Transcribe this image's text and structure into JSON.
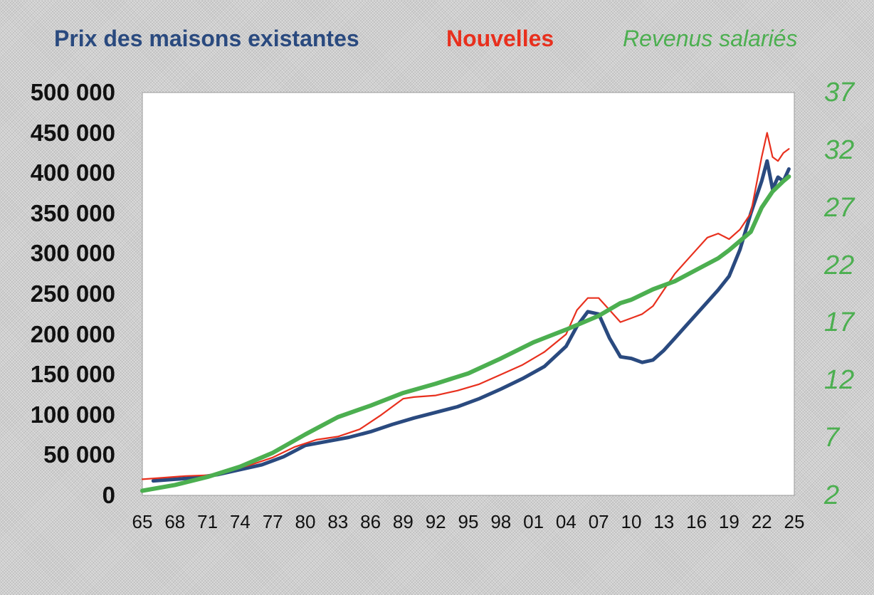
{
  "legend": {
    "existing": "Prix des maisons existantes",
    "new": "Nouvelles",
    "income": "Revenus salariés"
  },
  "colors": {
    "existing": "#2a4a7f",
    "new": "#e8301e",
    "income": "#4caf50",
    "plot_background": "#ffffff"
  },
  "chart_data": {
    "type": "line",
    "title": "",
    "xlabel": "",
    "ylabel_left": "",
    "ylabel_right": "",
    "x_ticks": [
      "65",
      "68",
      "71",
      "74",
      "77",
      "80",
      "83",
      "86",
      "89",
      "92",
      "95",
      "98",
      "01",
      "04",
      "07",
      "10",
      "13",
      "16",
      "19",
      "22",
      "25"
    ],
    "x_range": [
      1965,
      2025
    ],
    "y_left_ticks": [
      "0",
      "50 000",
      "100 000",
      "150 000",
      "200 000",
      "250 000",
      "300 000",
      "350 000",
      "400 000",
      "450 000",
      "500 000"
    ],
    "y_left_range": [
      0,
      500000
    ],
    "y_right_ticks": [
      "2",
      "7",
      "12",
      "17",
      "22",
      "27",
      "32",
      "37"
    ],
    "y_right_range": [
      2,
      37
    ],
    "grid": false,
    "legend_position": "top",
    "series": [
      {
        "name": "Prix des maisons existantes",
        "axis": "left",
        "x": [
          1966,
          1968,
          1970,
          1972,
          1974,
          1976,
          1978,
          1980,
          1982,
          1984,
          1986,
          1988,
          1990,
          1992,
          1994,
          1996,
          1998,
          2000,
          2002,
          2004,
          2005,
          2006,
          2007,
          2008,
          2009,
          2010,
          2011,
          2012,
          2013,
          2014,
          2015,
          2016,
          2017,
          2018,
          2019,
          2020,
          2021,
          2022,
          2022.5,
          2023,
          2023.5,
          2024,
          2024.5
        ],
        "y": [
          18000,
          20000,
          22000,
          26000,
          32000,
          38000,
          48000,
          62000,
          67000,
          72000,
          79000,
          88000,
          96000,
          103000,
          110000,
          120000,
          132000,
          145000,
          160000,
          185000,
          210000,
          228000,
          225000,
          195000,
          172000,
          170000,
          165000,
          168000,
          180000,
          195000,
          210000,
          225000,
          240000,
          255000,
          272000,
          305000,
          350000,
          390000,
          415000,
          380000,
          395000,
          390000,
          405000
        ]
      },
      {
        "name": "Nouvelles",
        "axis": "left",
        "x": [
          1965,
          1967,
          1969,
          1971,
          1973,
          1975,
          1977,
          1979,
          1981,
          1983,
          1985,
          1987,
          1989,
          1990,
          1992,
          1994,
          1996,
          1998,
          2000,
          2002,
          2004,
          2005,
          2006,
          2007,
          2008,
          2009,
          2010,
          2011,
          2012,
          2013,
          2014,
          2015,
          2016,
          2017,
          2018,
          2019,
          2020,
          2021,
          2022,
          2022.5,
          2023,
          2023.5,
          2024,
          2024.5
        ],
        "y": [
          20000,
          22000,
          24000,
          25000,
          31000,
          38000,
          47000,
          60000,
          69000,
          73000,
          82000,
          100000,
          120000,
          122000,
          124000,
          130000,
          138000,
          150000,
          162000,
          178000,
          200000,
          230000,
          245000,
          245000,
          230000,
          215000,
          220000,
          225000,
          235000,
          255000,
          275000,
          290000,
          305000,
          320000,
          325000,
          318000,
          330000,
          350000,
          420000,
          450000,
          420000,
          415000,
          425000,
          430000
        ]
      },
      {
        "name": "Revenus salariés",
        "axis": "right",
        "x": [
          1965,
          1968,
          1971,
          1974,
          1977,
          1980,
          1983,
          1986,
          1989,
          1992,
          1995,
          1998,
          2001,
          2004,
          2007,
          2009,
          2010,
          2012,
          2014,
          2016,
          2018,
          2019,
          2020,
          2021,
          2022,
          2023,
          2024,
          2024.5
        ],
        "y": [
          2.4,
          2.9,
          3.6,
          4.5,
          5.7,
          7.3,
          8.8,
          9.8,
          10.9,
          11.7,
          12.6,
          13.9,
          15.3,
          16.4,
          17.6,
          18.7,
          19.0,
          19.9,
          20.6,
          21.6,
          22.6,
          23.3,
          24.1,
          24.9,
          27.0,
          28.4,
          29.3,
          29.7
        ]
      }
    ]
  }
}
